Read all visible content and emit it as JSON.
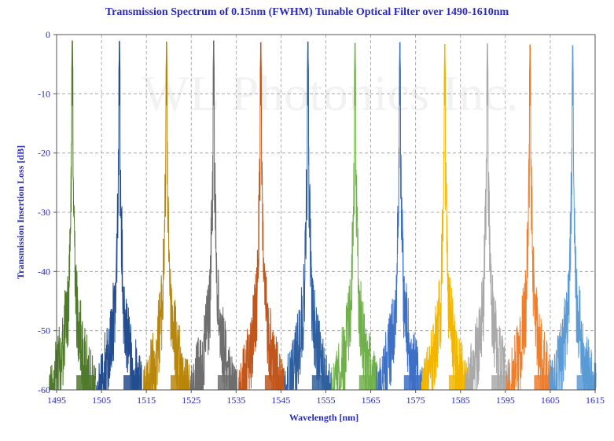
{
  "chart_data": {
    "type": "line",
    "title": "Transmission Spectrum of 0.15nm (FWHM) Tunable Optical Filter over 1490-1610nm",
    "xlabel": "Wavelength [nm]",
    "ylabel": "Transmission Insertion Loss [dB]",
    "xlim": [
      1495,
      1615
    ],
    "ylim": [
      -60,
      0
    ],
    "x_ticks": [
      "1495",
      "1505",
      "1515",
      "1525",
      "1535",
      "1545",
      "1555",
      "1565",
      "1575",
      "1585",
      "1595",
      "1605",
      "1615"
    ],
    "y_ticks": [
      "0",
      "-10",
      "-20",
      "-30",
      "-40",
      "-50",
      "-60"
    ],
    "grid": true,
    "watermark": "WL Photonics Inc.",
    "series": [
      {
        "center": 1498.5,
        "peak": -1.0,
        "color": "#4f7a2c",
        "noise_floor": -58
      },
      {
        "center": 1509.0,
        "peak": -1.1,
        "color": "#244d8f",
        "noise_floor": -58
      },
      {
        "center": 1519.5,
        "peak": -1.2,
        "color": "#b8860b",
        "noise_floor": -58
      },
      {
        "center": 1530.0,
        "peak": -1.0,
        "color": "#6e6e6e",
        "noise_floor": -58
      },
      {
        "center": 1540.5,
        "peak": -1.3,
        "color": "#c0561b",
        "noise_floor": -58
      },
      {
        "center": 1551.0,
        "peak": -1.2,
        "color": "#2f5f9e",
        "noise_floor": -58
      },
      {
        "center": 1561.5,
        "peak": -1.4,
        "color": "#70b04a",
        "noise_floor": -58
      },
      {
        "center": 1571.5,
        "peak": -1.3,
        "color": "#3c6fc6",
        "noise_floor": -58
      },
      {
        "center": 1581.5,
        "peak": -1.6,
        "color": "#f2b600",
        "noise_floor": -58
      },
      {
        "center": 1591.0,
        "peak": -1.5,
        "color": "#a9a9a9",
        "noise_floor": -58
      },
      {
        "center": 1600.5,
        "peak": -1.7,
        "color": "#ef7d2a",
        "noise_floor": -58
      },
      {
        "center": 1610.0,
        "peak": -1.8,
        "color": "#5b9bd5",
        "noise_floor": -55
      }
    ]
  }
}
